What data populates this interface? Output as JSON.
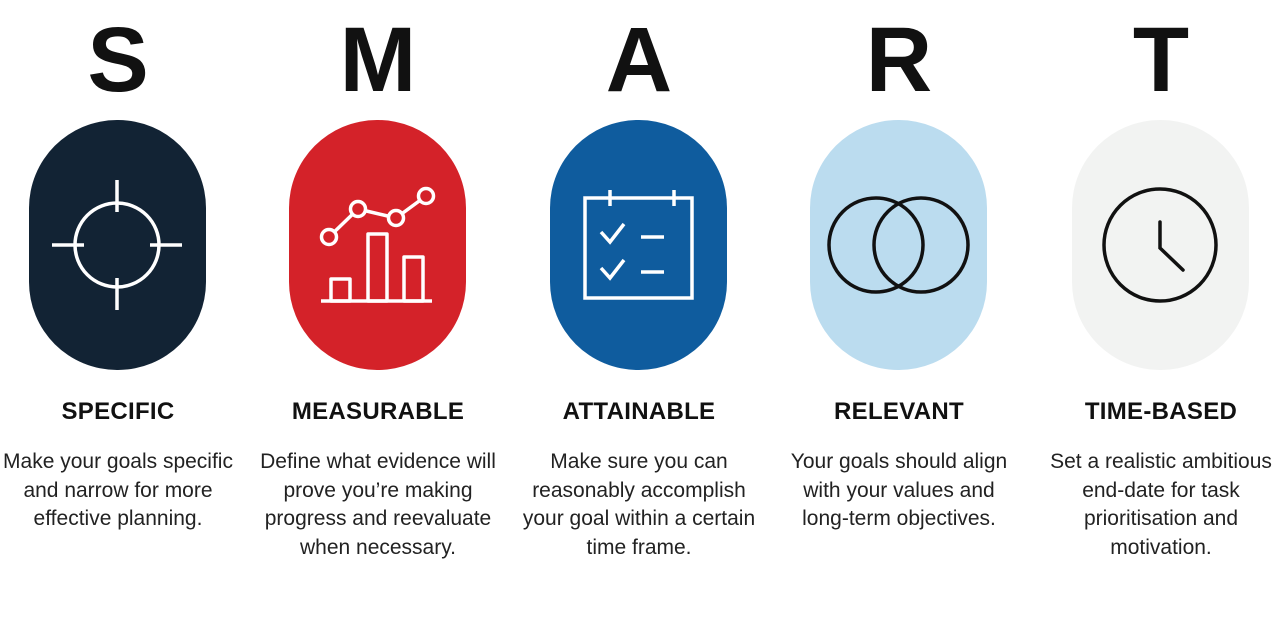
{
  "items": [
    {
      "letter": "S",
      "heading": "SPECIFIC",
      "description": "Make your goals specific and narrow for more effective planning.",
      "color": "#122334",
      "icon": "target-crosshair-icon"
    },
    {
      "letter": "M",
      "heading": "MEASURABLE",
      "description": "Define what evidence will prove you’re making progress and reevaluate when necessary.",
      "color": "#d42229",
      "icon": "chart-growth-icon"
    },
    {
      "letter": "A",
      "heading": "ATTAINABLE",
      "description": "Make sure you can reasonably accomplish your goal within a certain time frame.",
      "color": "#0f5c9e",
      "icon": "calendar-checklist-icon"
    },
    {
      "letter": "R",
      "heading": "RELEVANT",
      "description": "Your goals should align with your values and long-term objectives.",
      "color": "#bbdcef",
      "icon": "overlapping-circles-icon"
    },
    {
      "letter": "T",
      "heading": "TIME-BASED",
      "description": "Set a realistic ambitious end-date for task prioritisation and motivation.",
      "color": "#f2f3f2",
      "icon": "clock-icon"
    }
  ]
}
